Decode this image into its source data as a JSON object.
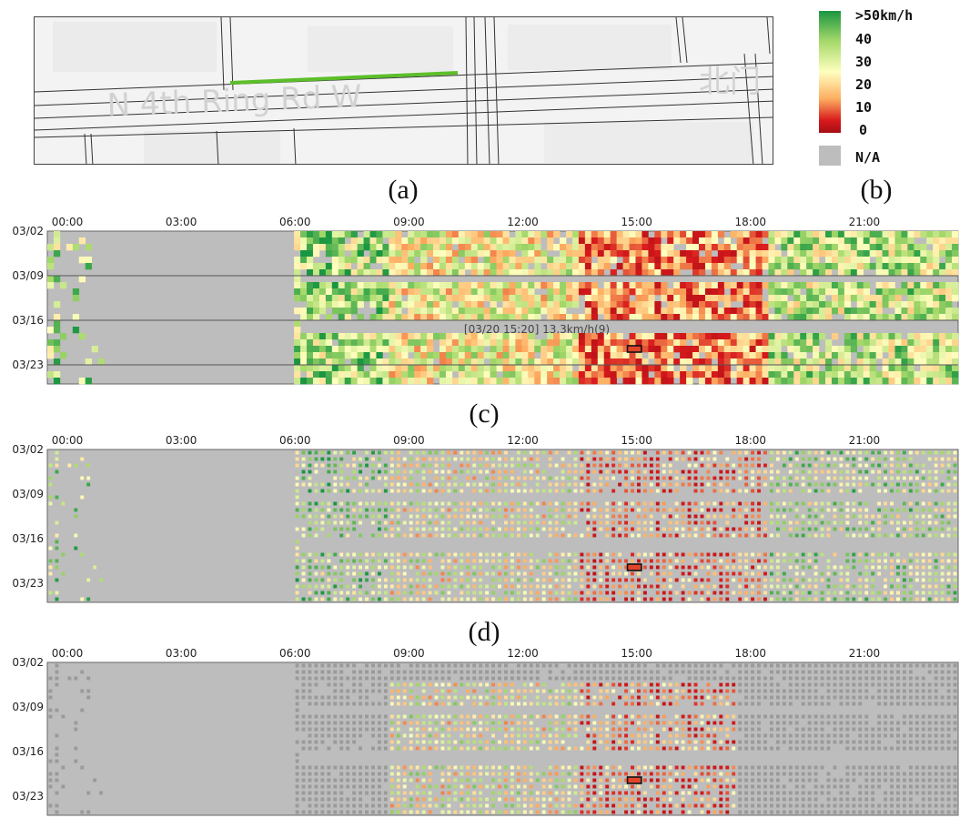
{
  "captions": {
    "a": "(a)",
    "b": "(b)",
    "c": "(c)",
    "d": "(d)"
  },
  "map": {
    "road_label": "N 4th Ring Rd W",
    "corner_label": "北门",
    "highlight_color": "#5cbf2a"
  },
  "legend": {
    "entries": [
      ">50km/h",
      "40",
      "30",
      "20",
      "10",
      "0"
    ],
    "na_label": "N/A",
    "gradient_colors": [
      "#1a9641",
      "#a6d96a",
      "#ffffbf",
      "#fdae61",
      "#d7191c",
      "#a50f15"
    ],
    "na_color": "#bdbdbd"
  },
  "chart_data": [
    {
      "type": "heatmap",
      "panel": "c",
      "x_ticks": [
        "00:00",
        "03:00",
        "06:00",
        "09:00",
        "12:00",
        "15:00",
        "18:00",
        "21:00"
      ],
      "y_ticks": [
        "03/02",
        "03/09",
        "03/16",
        "03/23"
      ],
      "x_range": [
        "00:00",
        "24:00"
      ],
      "y_range": [
        "03/02",
        "03/25"
      ],
      "value_unit": "km/h",
      "color_scale": [
        0,
        50
      ],
      "grid": "weekly separators",
      "tooltip": "[03/20 15:20] 13.3km/h(9)"
    },
    {
      "type": "heatmap",
      "panel": "d",
      "x_ticks": [
        "00:00",
        "03:00",
        "06:00",
        "09:00",
        "12:00",
        "15:00",
        "18:00",
        "21:00"
      ],
      "y_ticks": [
        "03/02",
        "03/09",
        "03/16",
        "03/23"
      ],
      "x_range": [
        "00:00",
        "24:00"
      ],
      "y_range": [
        "03/02",
        "03/25"
      ],
      "value_unit": "km/h",
      "color_scale": [
        0,
        50
      ]
    },
    {
      "type": "heatmap",
      "panel": "e",
      "x_ticks": [
        "00:00",
        "03:00",
        "06:00",
        "09:00",
        "12:00",
        "15:00",
        "18:00",
        "21:00"
      ],
      "y_ticks": [
        "03/02",
        "03/09",
        "03/16",
        "03/23"
      ],
      "x_range": [
        "00:00",
        "24:00"
      ],
      "y_range": [
        "03/02",
        "03/25"
      ],
      "value_unit": "km/h",
      "color_scale": [
        0,
        50
      ],
      "filter_window": [
        "09:00",
        "18:00"
      ]
    }
  ]
}
